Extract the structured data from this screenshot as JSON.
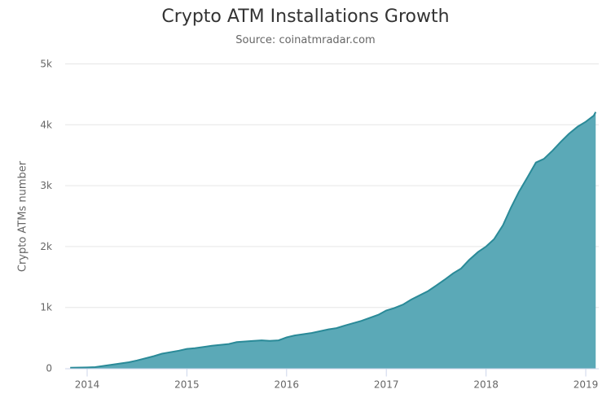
{
  "chart_data": {
    "type": "area",
    "title": "Crypto ATM Installations Growth",
    "subtitle": "Source: coinatmradar.com",
    "xlabel": "",
    "ylabel": "Crypto ATMs number",
    "ylim": [
      0,
      5000
    ],
    "xlim": [
      2013.83,
      2019.1
    ],
    "y_ticks": [
      {
        "value": 0,
        "label": "0"
      },
      {
        "value": 1000,
        "label": "1k"
      },
      {
        "value": 2000,
        "label": "2k"
      },
      {
        "value": 3000,
        "label": "3k"
      },
      {
        "value": 4000,
        "label": "4k"
      },
      {
        "value": 5000,
        "label": "5k"
      }
    ],
    "x_ticks": [
      {
        "value": 2014,
        "label": "2014"
      },
      {
        "value": 2015,
        "label": "2015"
      },
      {
        "value": 2016,
        "label": "2016"
      },
      {
        "value": 2017,
        "label": "2017"
      },
      {
        "value": 2018,
        "label": "2018"
      },
      {
        "value": 2019,
        "label": "2019"
      }
    ],
    "grid": true,
    "legend": false,
    "series": [
      {
        "name": "Crypto ATMs",
        "color": "#5ba9b7",
        "line_color": "#2a8a98",
        "x": [
          2013.83,
          2014.0,
          2014.08,
          2014.25,
          2014.42,
          2014.5,
          2014.67,
          2014.75,
          2014.92,
          2015.0,
          2015.08,
          2015.25,
          2015.42,
          2015.5,
          2015.67,
          2015.75,
          2015.83,
          2015.92,
          2016.0,
          2016.08,
          2016.25,
          2016.42,
          2016.5,
          2016.58,
          2016.75,
          2016.92,
          2017.0,
          2017.08,
          2017.17,
          2017.25,
          2017.42,
          2017.5,
          2017.58,
          2017.67,
          2017.75,
          2017.83,
          2017.92,
          2018.0,
          2018.08,
          2018.17,
          2018.25,
          2018.33,
          2018.42,
          2018.5,
          2018.58,
          2018.67,
          2018.75,
          2018.83,
          2018.92,
          2019.0,
          2019.08,
          2019.1
        ],
        "values": [
          10,
          15,
          20,
          60,
          100,
          130,
          200,
          240,
          290,
          320,
          330,
          370,
          400,
          430,
          450,
          460,
          450,
          460,
          510,
          540,
          580,
          640,
          660,
          700,
          780,
          880,
          950,
          990,
          1050,
          1130,
          1270,
          1360,
          1450,
          1560,
          1640,
          1780,
          1910,
          2000,
          2120,
          2350,
          2640,
          2900,
          3150,
          3380,
          3440,
          3580,
          3720,
          3850,
          3970,
          4050,
          4150,
          4210
        ]
      }
    ]
  }
}
